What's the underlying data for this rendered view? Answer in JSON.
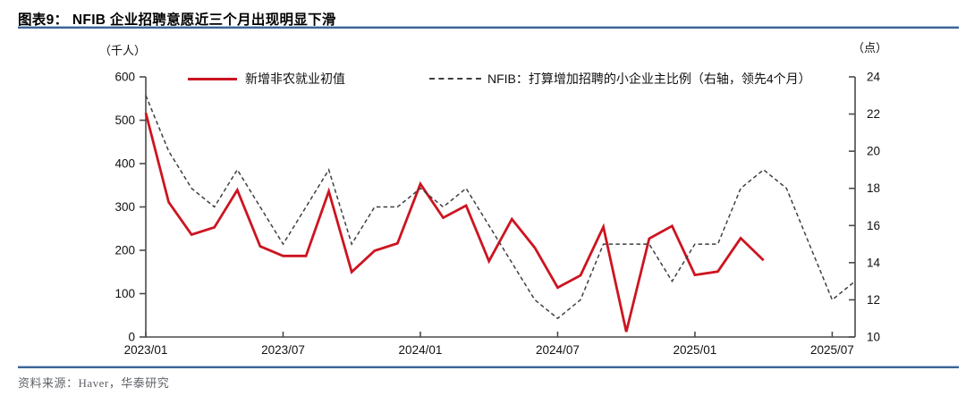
{
  "page": {
    "title": "图表9： NFIB 企业招聘意愿近三个月出现明显下滑",
    "source": "资料来源：Haver，华泰研究"
  },
  "chart_data": {
    "type": "line",
    "title": "NFIB 企业招聘意愿近三个月出现明显下滑",
    "left_axis_unit": "（千人）",
    "right_axis_unit": "（点）",
    "left_ylim": [
      0,
      600
    ],
    "left_yticks": [
      0,
      100,
      200,
      300,
      400,
      500,
      600
    ],
    "right_ylim": [
      10,
      24
    ],
    "right_yticks": [
      10,
      12,
      14,
      16,
      18,
      20,
      22,
      24
    ],
    "grid": false,
    "legend_position": "top",
    "months": [
      "2023/01",
      "2023/02",
      "2023/03",
      "2023/04",
      "2023/05",
      "2023/06",
      "2023/07",
      "2023/08",
      "2023/09",
      "2023/10",
      "2023/11",
      "2023/12",
      "2024/01",
      "2024/02",
      "2024/03",
      "2024/04",
      "2024/05",
      "2024/06",
      "2024/07",
      "2024/08",
      "2024/09",
      "2024/10",
      "2024/11",
      "2024/12",
      "2025/01",
      "2025/02",
      "2025/03",
      "2025/04",
      "2025/05",
      "2025/06",
      "2025/07",
      "2025/08"
    ],
    "x_ticks": [
      {
        "index": 0,
        "label": "2023/01"
      },
      {
        "index": 6,
        "label": "2023/07"
      },
      {
        "index": 12,
        "label": "2024/01"
      },
      {
        "index": 18,
        "label": "2024/07"
      },
      {
        "index": 24,
        "label": "2025/01"
      },
      {
        "index": 30,
        "label": "2025/07"
      }
    ],
    "series": [
      {
        "name": "新增非农就业初值",
        "axis": "left",
        "style": "solid",
        "color": "#cd1420",
        "values": [
          517,
          311,
          236,
          253,
          339,
          209,
          187,
          187,
          336,
          150,
          199,
          216,
          353,
          275,
          303,
          175,
          272,
          206,
          114,
          142,
          254,
          12,
          227,
          256,
          143,
          151,
          228,
          177
        ]
      },
      {
        "name": "NFIB：打算增加招聘的小企业主比例（右轴，领先4个月）",
        "axis": "right",
        "style": "dashed",
        "color": "#3f3f3f",
        "values": [
          23,
          20,
          18,
          17,
          19,
          17,
          15,
          17,
          19,
          15,
          17,
          17,
          18,
          17,
          18,
          16,
          14,
          12,
          11,
          12,
          15,
          15,
          15,
          13,
          15,
          15,
          18,
          19,
          18,
          15,
          12,
          13
        ]
      }
    ],
    "axis_color": "#4a4a4a",
    "tick_label_color": "#111111"
  }
}
